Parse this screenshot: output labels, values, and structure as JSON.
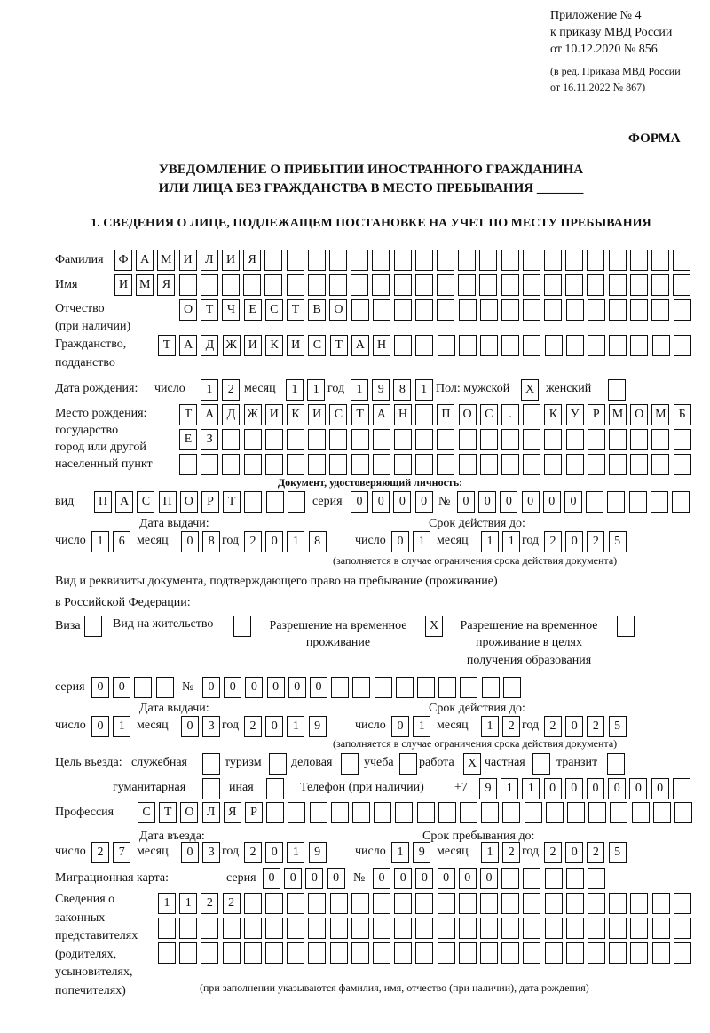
{
  "header": {
    "appendix": [
      "Приложение № 4",
      "к приказу МВД России",
      "от 10.12.2020 № 856"
    ],
    "edition": [
      "(в ред. Приказа МВД России",
      "от 16.11.2022 № 867)"
    ],
    "form_label": "ФОРМА",
    "title": [
      "УВЕДОМЛЕНИЕ О ПРИБЫТИИ ИНОСТРАННОГО ГРАЖДАНИНА",
      "ИЛИ ЛИЦА БЕЗ ГРАЖДАНСТВА В МЕСТО ПРЕБЫВАНИЯ _______"
    ],
    "section1": "1. СВЕДЕНИЯ О ЛИЦЕ, ПОДЛЕЖАЩЕМ ПОСТАНОВКЕ НА УЧЕТ ПО МЕСТУ ПРЕБЫВАНИЯ"
  },
  "person": {
    "surname": {
      "label": "Фамилия",
      "value": "ФАМИЛИЯ"
    },
    "name": {
      "label": "Имя",
      "value": "ИМЯ"
    },
    "patronymic": {
      "label": [
        "Отчество",
        "(при наличии)"
      ],
      "value": "ОТЧЕСТВО"
    },
    "citizenship": {
      "label": [
        "Гражданство,",
        "подданство"
      ],
      "value": "ТАДЖИКИСТАН"
    },
    "birth_date": {
      "label": "Дата рождения:",
      "day_label": "число",
      "day": "12",
      "month_label": "месяц",
      "month": "11",
      "year_label": "год",
      "year": "1981"
    },
    "sex": {
      "label": "Пол: мужской",
      "male": "X",
      "female_label": "женский",
      "female": ""
    },
    "birth_place": {
      "label": [
        "Место рождения:",
        "государство",
        "город или другой",
        "населенный пункт"
      ],
      "lines": [
        "ТАДЖИКИСТАН ПОС. КУРМОМБ",
        "ЕЗ",
        ""
      ]
    }
  },
  "id_doc": {
    "heading": "Документ, удостоверяющий личность:",
    "kind_label": "вид",
    "kind": "ПАСПОРТ",
    "series_label": "серия",
    "series": "0000",
    "number_label": "№",
    "number": "000000",
    "issue_label": "Дата выдачи:",
    "valid_label": "Срок действия до:",
    "day_label": "число",
    "month_label": "месяц",
    "year_label": "год",
    "issue": {
      "day": "16",
      "month": "08",
      "year": "2018"
    },
    "valid": {
      "day": "01",
      "month": "11",
      "year": "2025"
    },
    "note": "(заполняется в случае ограничения срока действия документа)"
  },
  "stay_doc": {
    "heading": [
      "Вид и реквизиты документа, подтверждающего право на пребывание (проживание)",
      "в Российской Федерации:"
    ],
    "options": [
      {
        "label": "Виза",
        "checked": ""
      },
      {
        "label": "Вид на жительство",
        "checked": ""
      },
      {
        "label": [
          "Разрешение на временное",
          "проживание"
        ],
        "checked": "X"
      },
      {
        "label": [
          "Разрешение на временное",
          "проживание в целях",
          "получения образования"
        ],
        "checked": ""
      }
    ],
    "series_label": "серия",
    "series": "00",
    "number_label": "№",
    "number": "000000",
    "issue_label": "Дата выдачи:",
    "valid_label": "Срок действия до:",
    "day_label": "число",
    "month_label": "месяц",
    "year_label": "год",
    "issue": {
      "day": "01",
      "month": "03",
      "year": "2019"
    },
    "valid": {
      "day": "01",
      "month": "12",
      "year": "2025"
    },
    "note": "(заполняется в случае ограничения срока действия документа)"
  },
  "purpose": {
    "label": "Цель въезда:",
    "options": [
      {
        "label": "служебная",
        "checked": ""
      },
      {
        "label": "туризм",
        "checked": ""
      },
      {
        "label": "деловая",
        "checked": ""
      },
      {
        "label": "учеба",
        "checked": ""
      },
      {
        "label": "работа",
        "checked": "X"
      },
      {
        "label": "частная",
        "checked": ""
      },
      {
        "label": "транзит",
        "checked": ""
      },
      {
        "label": "гуманитарная",
        "checked": ""
      },
      {
        "label": "иная",
        "checked": ""
      }
    ]
  },
  "phone": {
    "label": "Телефон (при наличии)",
    "prefix": "+7",
    "value": "911000000"
  },
  "profession": {
    "label": "Профессия",
    "value": "СТОЛЯР"
  },
  "entry": {
    "entry_label": "Дата въезда:",
    "stay_label": "Срок пребывания до:",
    "day_label": "число",
    "month_label": "месяц",
    "year_label": "год",
    "entry": {
      "day": "27",
      "month": "03",
      "year": "2019"
    },
    "stay": {
      "day": "19",
      "month": "12",
      "year": "2025"
    }
  },
  "migration_card": {
    "label": "Миграционная карта:",
    "series_label": "серия",
    "series": "0000",
    "number_label": "№",
    "number": "000000"
  },
  "representatives": {
    "label": [
      "Сведения о",
      "законных",
      "представителях",
      "(родителях,",
      "усыновителях,",
      "попечителях)"
    ],
    "lines": [
      "1122",
      "",
      ""
    ],
    "note": "(при заполнении указываются фамилия, имя, отчество (при наличии), дата рождения)"
  }
}
